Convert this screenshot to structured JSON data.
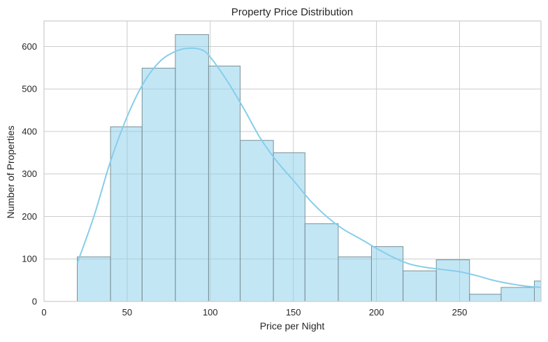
{
  "chart_data": {
    "type": "bar",
    "subtype": "histogram-with-kde",
    "title": "Property Price Distribution",
    "xlabel": "Price per Night",
    "ylabel": "Number of Properties",
    "xlim": [
      0,
      299
    ],
    "ylim": [
      0,
      660
    ],
    "xticks": [
      0,
      50,
      100,
      150,
      200,
      250
    ],
    "yticks": [
      0,
      100,
      200,
      300,
      400,
      500,
      600
    ],
    "grid": true,
    "legend": "none",
    "bins": [
      {
        "x0": 20,
        "x1": 40,
        "count": 105
      },
      {
        "x0": 40,
        "x1": 59,
        "count": 411
      },
      {
        "x0": 59,
        "x1": 79,
        "count": 549
      },
      {
        "x0": 79,
        "x1": 99,
        "count": 628
      },
      {
        "x0": 99,
        "x1": 118,
        "count": 554
      },
      {
        "x0": 118,
        "x1": 138,
        "count": 379
      },
      {
        "x0": 138,
        "x1": 157,
        "count": 350
      },
      {
        "x0": 157,
        "x1": 177,
        "count": 183
      },
      {
        "x0": 177,
        "x1": 197,
        "count": 105
      },
      {
        "x0": 197,
        "x1": 216,
        "count": 129
      },
      {
        "x0": 216,
        "x1": 236,
        "count": 72
      },
      {
        "x0": 236,
        "x1": 256,
        "count": 98
      },
      {
        "x0": 256,
        "x1": 275,
        "count": 17
      },
      {
        "x0": 275,
        "x1": 295,
        "count": 33
      },
      {
        "x0": 295,
        "x1": 315,
        "count": 48
      }
    ],
    "kde": {
      "x": [
        20,
        30,
        40,
        50,
        60,
        70,
        80,
        88,
        95,
        100,
        110,
        120,
        130,
        140,
        150,
        160,
        170,
        180,
        190,
        200,
        210,
        220,
        230,
        240,
        250,
        260,
        270,
        280,
        290,
        299
      ],
      "y": [
        90,
        200,
        330,
        435,
        515,
        566,
        590,
        596,
        592,
        575,
        520,
        455,
        385,
        330,
        285,
        238,
        200,
        170,
        148,
        125,
        104,
        88,
        80,
        75,
        70,
        61,
        50,
        42,
        36,
        33
      ]
    },
    "colors": {
      "bar_fill": "#87ceeb",
      "bar_edge": "#7a9196",
      "kde_line": "#87ceeb",
      "grid": "#cccccc",
      "spine": "#cccccc"
    }
  }
}
